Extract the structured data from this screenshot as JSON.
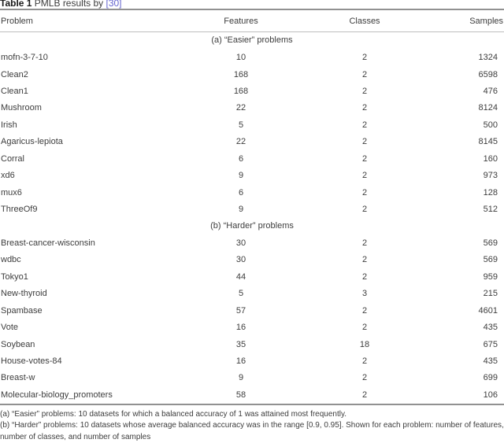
{
  "title": {
    "label": "Table 1",
    "text": " PMLB results by ",
    "citation": "[30]"
  },
  "columns": [
    "Problem",
    "Features",
    "Classes",
    "Samples"
  ],
  "sections": [
    {
      "header": "(a) “Easier” problems",
      "rows": [
        [
          "mofn-3-7-10",
          "10",
          "2",
          "1324"
        ],
        [
          "Clean2",
          "168",
          "2",
          "6598"
        ],
        [
          "Clean1",
          "168",
          "2",
          "476"
        ],
        [
          "Mushroom",
          "22",
          "2",
          "8124"
        ],
        [
          "Irish",
          "5",
          "2",
          "500"
        ],
        [
          "Agaricus-lepiota",
          "22",
          "2",
          "8145"
        ],
        [
          "Corral",
          "6",
          "2",
          "160"
        ],
        [
          "xd6",
          "9",
          "2",
          "973"
        ],
        [
          "mux6",
          "6",
          "2",
          "128"
        ],
        [
          "ThreeOf9",
          "9",
          "2",
          "512"
        ]
      ]
    },
    {
      "header": "(b) “Harder” problems",
      "rows": [
        [
          "Breast-cancer-wisconsin",
          "30",
          "2",
          "569"
        ],
        [
          "wdbc",
          "30",
          "2",
          "569"
        ],
        [
          "Tokyo1",
          "44",
          "2",
          "959"
        ],
        [
          "New-thyroid",
          "5",
          "3",
          "215"
        ],
        [
          "Spambase",
          "57",
          "2",
          "4601"
        ],
        [
          "Vote",
          "16",
          "2",
          "435"
        ],
        [
          "Soybean",
          "35",
          "18",
          "675"
        ],
        [
          "House-votes-84",
          "16",
          "2",
          "435"
        ],
        [
          "Breast-w",
          "9",
          "2",
          "699"
        ],
        [
          "Molecular-biology_promoters",
          "58",
          "2",
          "106"
        ]
      ]
    }
  ],
  "footnotes": [
    "(a) “Easier” problems: 10 datasets for which a balanced accuracy of 1 was attained most frequently.",
    "(b) “Harder” problems: 10 datasets whose average balanced accuracy was in the range [0.9, 0.95]. Shown for each problem: number of features, number of classes, and number of samples"
  ],
  "colors": {
    "text": "#3d3d3d",
    "citation": "#6363cf",
    "rule_heavy": "#919191",
    "rule_light": "#bdbdbd"
  }
}
